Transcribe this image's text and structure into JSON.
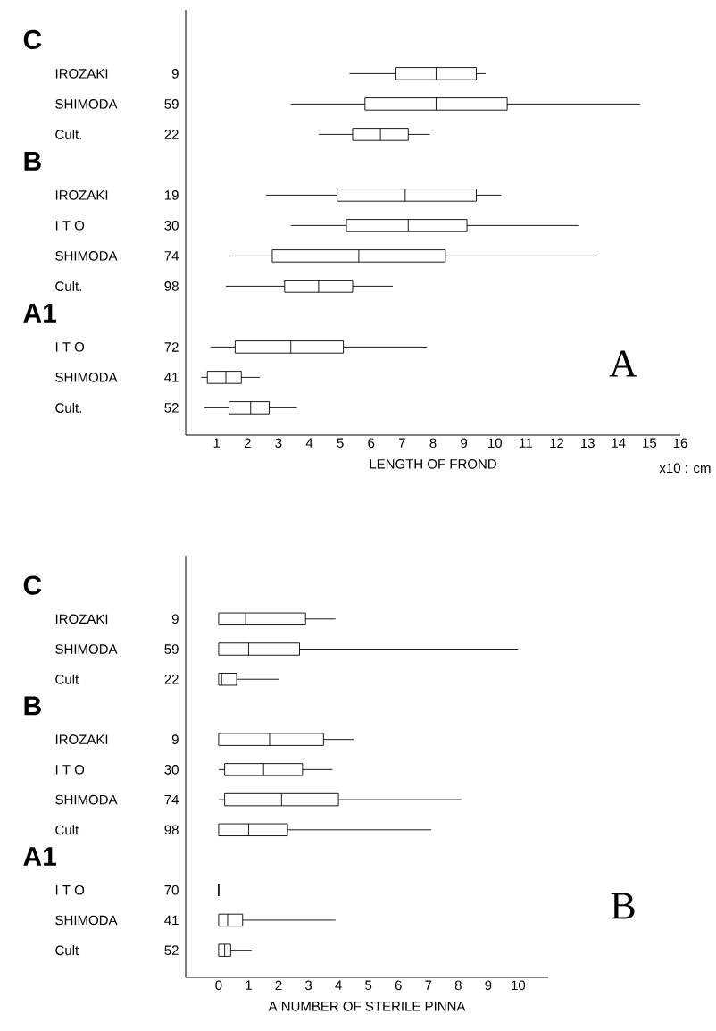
{
  "chart_data": [
    {
      "type": "box",
      "orientation": "horizontal",
      "xlabel": "LENGTH OF FROND",
      "categories": [
        null,
        "IROZAKI",
        "SHIMODA",
        "Cult.",
        null,
        "IROZAKI",
        "I T O",
        "SHIMODA",
        "Cult.",
        null,
        "I T O",
        "SHIMODA",
        "Cult."
      ],
      "y2_categories": [
        null,
        "9",
        "59",
        "22",
        null,
        "19",
        "30",
        "74",
        "98",
        null,
        "72",
        "41",
        "52"
      ],
      "boxes": [
        null,
        {
          "low": 5.3,
          "q1": 6.8,
          "median": 8.1,
          "q3": 9.4,
          "high": 9.7
        },
        {
          "low": 3.4,
          "q1": 5.8,
          "median": 8.1,
          "q3": 10.4,
          "high": 14.7
        },
        {
          "low": 4.3,
          "q1": 5.4,
          "median": 6.3,
          "q3": 7.2,
          "high": 7.9
        },
        null,
        {
          "low": 2.6,
          "q1": 4.9,
          "median": 7.1,
          "q3": 9.4,
          "high": 10.2
        },
        {
          "low": 3.4,
          "q1": 5.2,
          "median": 7.2,
          "q3": 9.1,
          "high": 12.7
        },
        {
          "low": 1.5,
          "q1": 2.8,
          "median": 5.6,
          "q3": 8.4,
          "high": 13.3
        },
        {
          "low": 1.3,
          "q1": 3.2,
          "median": 4.3,
          "q3": 5.4,
          "high": 6.7
        },
        null,
        {
          "low": 0.8,
          "q1": 1.6,
          "median": 3.4,
          "q3": 5.1,
          "high": 7.8
        },
        {
          "low": 0.5,
          "q1": 0.7,
          "median": 1.3,
          "q3": 1.8,
          "high": 2.4
        },
        {
          "low": 0.6,
          "q1": 1.4,
          "median": 2.1,
          "q3": 2.7,
          "high": 3.6
        }
      ],
      "xlim": [
        0,
        16
      ],
      "xticks": [
        1,
        2,
        3,
        4,
        5,
        6,
        7,
        8,
        9,
        10,
        11,
        12,
        13,
        14,
        15,
        16
      ],
      "annotations": [
        "C",
        "B",
        "A1",
        "x10 : cm",
        "A"
      ]
    },
    {
      "type": "box",
      "orientation": "horizontal",
      "xlabel": "A NUMBER OF STERILE PINNA",
      "categories": [
        null,
        "IROZAKI",
        "SHIMODA",
        "Cult",
        null,
        "IROZAKI",
        "I T O",
        "SHIMODA",
        "Cult",
        null,
        "I T O",
        "SHIMODA",
        "Cult"
      ],
      "y2_categories": [
        null,
        "9",
        "59",
        "22",
        null,
        "9",
        "30",
        "74",
        "98",
        null,
        "70",
        "41",
        "52"
      ],
      "boxes": [
        null,
        {
          "low": 0,
          "q1": 0,
          "median": 0.9,
          "q3": 2.9,
          "high": 3.9
        },
        {
          "low": 0,
          "q1": 0,
          "median": 1.0,
          "q3": 2.7,
          "high": 10.0
        },
        {
          "low": 0,
          "q1": 0,
          "median": 0.1,
          "q3": 0.6,
          "high": 2.0
        },
        null,
        {
          "low": 0,
          "q1": 0,
          "median": 1.7,
          "q3": 3.5,
          "high": 4.5
        },
        {
          "low": 0,
          "q1": 0.2,
          "median": 1.5,
          "q3": 2.8,
          "high": 3.8
        },
        {
          "low": 0,
          "q1": 0.2,
          "median": 2.1,
          "q3": 4.0,
          "high": 8.1
        },
        {
          "low": 0,
          "q1": 0,
          "median": 1.0,
          "q3": 2.3,
          "high": 7.1
        },
        null,
        {
          "low": 0,
          "q1": 0,
          "median": 0,
          "q3": 0,
          "high": 0
        },
        {
          "low": 0,
          "q1": 0,
          "median": 0.3,
          "q3": 0.8,
          "high": 3.9
        },
        {
          "low": 0,
          "q1": 0,
          "median": 0.2,
          "q3": 0.4,
          "high": 1.1
        }
      ],
      "xlim": [
        -1.1,
        11
      ],
      "xticks": [
        0,
        1,
        2,
        3,
        4,
        5,
        6,
        7,
        8,
        9,
        10
      ],
      "annotations": [
        "C",
        "B",
        "A1",
        "B"
      ]
    }
  ]
}
